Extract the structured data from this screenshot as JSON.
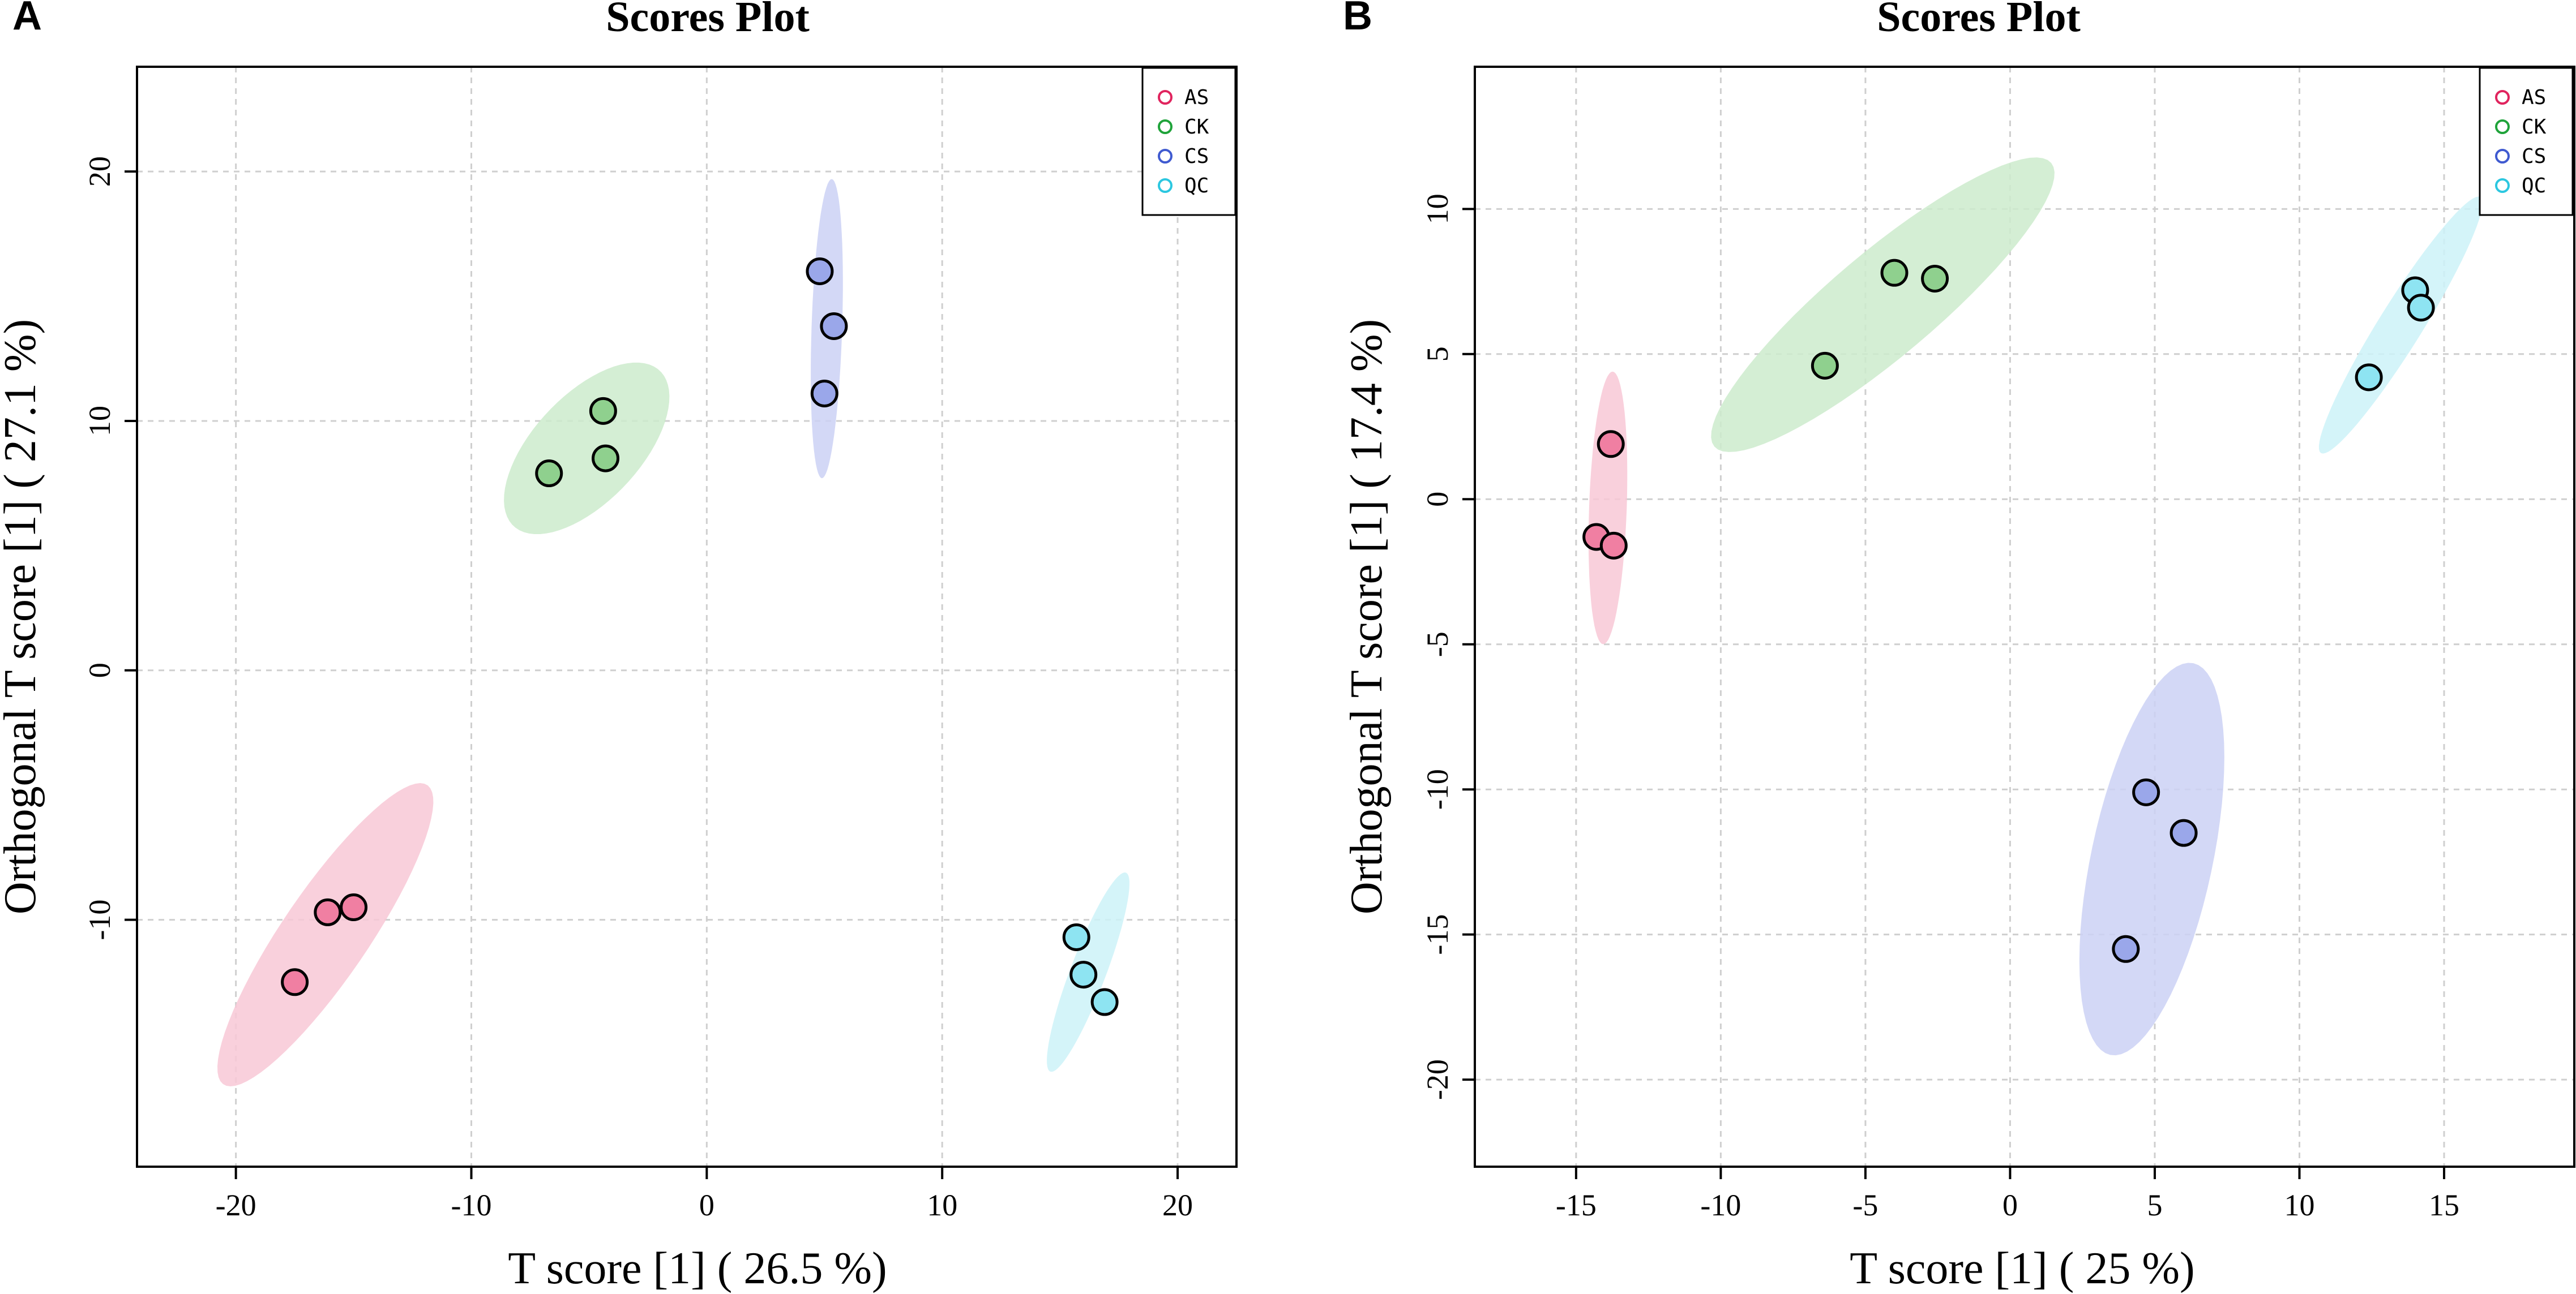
{
  "chart_data": [
    {
      "panel": "A",
      "type": "scatter",
      "title": "Scores Plot",
      "xlabel": "T score [1] ( 26.5 %)",
      "ylabel": "Orthogonal T score [1] ( 27.1 %)",
      "xlim": [
        -24.2,
        22.5
      ],
      "ylim": [
        -19.9,
        24.2
      ],
      "xticks": [
        -20,
        -10,
        0,
        10,
        20
      ],
      "yticks": [
        -10,
        0,
        10,
        20
      ],
      "grid": true,
      "legend_position": "top-right",
      "legend": [
        "AS",
        "CK",
        "CS",
        "QC"
      ],
      "series": [
        {
          "name": "AS",
          "color": "#e0245e",
          "fill": "#f07fa2",
          "ellipse_fill": "#f8c8d6",
          "points": [
            {
              "x": -17.5,
              "y": -12.5
            },
            {
              "x": -16.1,
              "y": -9.7
            },
            {
              "x": -15.0,
              "y": -9.5
            }
          ],
          "ellipse": {
            "cx": -16.2,
            "cy": -10.6,
            "major": 7.4,
            "minor": 1.8,
            "angle": 54.0
          }
        },
        {
          "name": "CK",
          "color": "#1fa33a",
          "fill": "#8fd08e",
          "ellipse_fill": "#cdebcd",
          "points": [
            {
              "x": -6.7,
              "y": 7.9
            },
            {
              "x": -4.4,
              "y": 10.4
            },
            {
              "x": -4.3,
              "y": 8.5
            }
          ],
          "ellipse": {
            "cx": -5.1,
            "cy": 8.9,
            "major": 4.4,
            "minor": 2.2,
            "angle": 44.0
          }
        },
        {
          "name": "CS",
          "color": "#3f5ad0",
          "fill": "#9aa7ea",
          "ellipse_fill": "#cbd1f5",
          "points": [
            {
              "x": 4.8,
              "y": 16.0
            },
            {
              "x": 5.0,
              "y": 11.1
            },
            {
              "x": 5.4,
              "y": 13.8
            }
          ],
          "ellipse": {
            "cx": 5.1,
            "cy": 13.7,
            "major": 6.0,
            "minor": 0.65,
            "angle": 88.0
          }
        },
        {
          "name": "QC",
          "color": "#2cc7e0",
          "fill": "#8ee4f2",
          "ellipse_fill": "#cdf2f8",
          "points": [
            {
              "x": 15.7,
              "y": -10.7
            },
            {
              "x": 16.0,
              "y": -12.2
            },
            {
              "x": 16.9,
              "y": -13.3
            }
          ],
          "ellipse": {
            "cx": 16.2,
            "cy": -12.1,
            "major": 4.3,
            "minor": 0.75,
            "angle": 68.0
          }
        }
      ]
    },
    {
      "panel": "B",
      "type": "scatter",
      "title": "Scores Plot",
      "xlabel": "T score [1] ( 25 %)",
      "ylabel": "Orthogonal T score [1] ( 17.4 %)",
      "xlim": [
        -18.5,
        19.5
      ],
      "ylim": [
        -23.0,
        14.9
      ],
      "xticks": [
        -15,
        -10,
        -5,
        0,
        5,
        10,
        15
      ],
      "yticks": [
        -20,
        -15,
        -10,
        -5,
        0,
        5,
        10
      ],
      "grid": true,
      "legend_position": "top-right",
      "legend": [
        "AS",
        "CK",
        "CS",
        "QC"
      ],
      "series": [
        {
          "name": "AS",
          "color": "#e0245e",
          "fill": "#f07fa2",
          "ellipse_fill": "#f8c8d6",
          "points": [
            {
              "x": -14.3,
              "y": -1.3
            },
            {
              "x": -13.8,
              "y": 1.9
            },
            {
              "x": -13.7,
              "y": -1.6
            }
          ],
          "ellipse": {
            "cx": -13.9,
            "cy": -0.3,
            "major": 4.7,
            "minor": 0.65,
            "angle": 88.0
          }
        },
        {
          "name": "CK",
          "color": "#1fa33a",
          "fill": "#8fd08e",
          "ellipse_fill": "#cdebcd",
          "points": [
            {
              "x": -6.4,
              "y": 4.6
            },
            {
              "x": -4.0,
              "y": 7.8
            },
            {
              "x": -2.6,
              "y": 7.6
            }
          ],
          "ellipse": {
            "cx": -4.4,
            "cy": 6.7,
            "major": 7.6,
            "minor": 1.8,
            "angle": 40.0
          }
        },
        {
          "name": "CS",
          "color": "#3f5ad0",
          "fill": "#9aa7ea",
          "ellipse_fill": "#cbd1f5",
          "points": [
            {
              "x": 4.0,
              "y": -15.5
            },
            {
              "x": 4.7,
              "y": -10.1
            },
            {
              "x": 6.0,
              "y": -11.5
            }
          ],
          "ellipse": {
            "cx": 4.9,
            "cy": -12.4,
            "major": 6.9,
            "minor": 2.1,
            "angle": 78.0
          }
        },
        {
          "name": "QC",
          "color": "#2cc7e0",
          "fill": "#8ee4f2",
          "ellipse_fill": "#cdf2f8",
          "points": [
            {
              "x": 12.4,
              "y": 4.2
            },
            {
              "x": 14.0,
              "y": 7.2
            },
            {
              "x": 14.2,
              "y": 6.6
            }
          ],
          "ellipse": {
            "cx": 13.5,
            "cy": 6.0,
            "major": 5.2,
            "minor": 0.75,
            "angle": 58.0
          }
        }
      ]
    }
  ]
}
